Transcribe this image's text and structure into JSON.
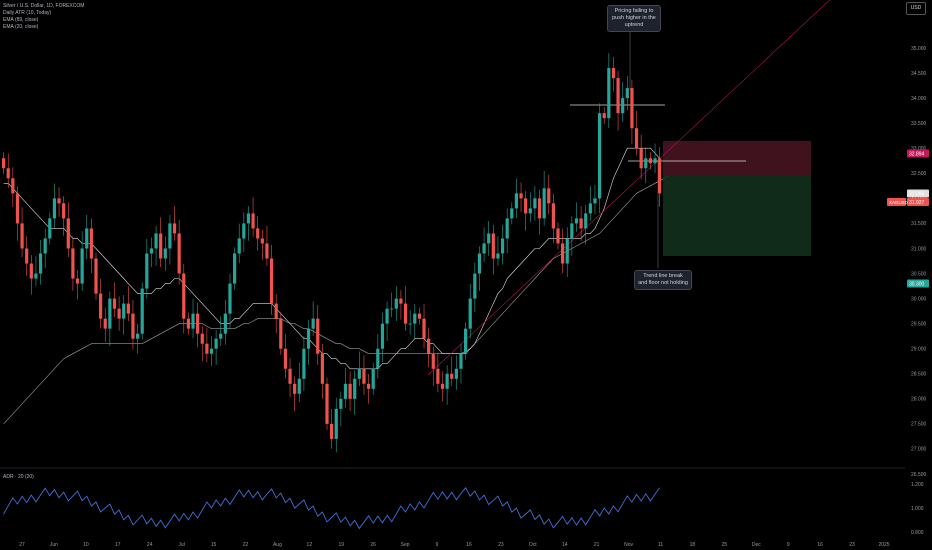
{
  "legend": {
    "symbol": "Silver / U.S. Dollar, 1D, FOREXCOM",
    "atr": "Daily ATR (10, Today)",
    "ema89": "EMA (89, close)",
    "ema20": "EMA (20, close)"
  },
  "currency_button": "USD",
  "annotations": {
    "top": "Pricing failing to push higher in the uptrend",
    "bottom": "Trend line break and floor not holding"
  },
  "indicator_label": "ADR · 20 (20)",
  "price_tags": {
    "stop": "32.894",
    "current": "31.927",
    "entry": "32.096",
    "target": "30.300",
    "symbol_tag": "XAGUSD"
  },
  "chart_data": {
    "type": "candlestick",
    "title": "Silver / U.S. Dollar, 1D, FOREXCOM",
    "y_range": [
      26.5,
      36.0
    ],
    "y_ticks": [
      "35.000",
      "34.500",
      "34.000",
      "33.500",
      "33.000",
      "32.500",
      "32.000",
      "31.500",
      "31.000",
      "30.500",
      "30.000",
      "29.500",
      "29.000",
      "28.500",
      "28.000",
      "27.500",
      "27.000",
      "26.500"
    ],
    "x_ticks": [
      "27",
      "Jun",
      "10",
      "17",
      "24",
      "Jul",
      "15",
      "22",
      "Aug",
      "12",
      "19",
      "26",
      "Sep",
      "9",
      "16",
      "23",
      "Oct",
      "14",
      "21",
      "Nov",
      "11",
      "18",
      "25",
      "Dec",
      "9",
      "16",
      "23",
      "2025"
    ],
    "close": [
      32.6,
      32.4,
      32.1,
      31.5,
      31.0,
      30.7,
      30.4,
      30.5,
      30.9,
      31.2,
      31.6,
      32.0,
      31.9,
      31.6,
      31.0,
      30.4,
      30.3,
      31.0,
      31.4,
      30.8,
      30.1,
      29.6,
      29.4,
      30.0,
      29.8,
      29.6,
      29.9,
      29.7,
      29.2,
      29.3,
      30.2,
      30.9,
      31.0,
      31.3,
      30.8,
      31.0,
      31.5,
      31.3,
      30.5,
      29.6,
      29.4,
      29.7,
      29.3,
      29.1,
      28.9,
      29.0,
      29.2,
      29.3,
      29.7,
      30.3,
      30.9,
      31.2,
      31.5,
      31.7,
      31.4,
      31.2,
      31.1,
      30.8,
      29.9,
      29.6,
      29.0,
      28.6,
      28.3,
      28.1,
      28.4,
      29.0,
      29.4,
      29.6,
      28.9,
      28.3,
      27.5,
      27.2,
      27.8,
      28.0,
      28.3,
      28.0,
      28.4,
      28.6,
      28.3,
      28.2,
      28.6,
      29.0,
      29.5,
      29.8,
      29.8,
      30.0,
      29.9,
      29.5,
      29.5,
      29.7,
      29.6,
      29.2,
      28.9,
      28.6,
      28.3,
      28.2,
      28.5,
      28.4,
      28.6,
      28.9,
      29.4,
      30.0,
      30.5,
      30.9,
      31.1,
      31.3,
      30.8,
      30.9,
      31.2,
      31.6,
      31.8,
      32.1,
      32.0,
      31.7,
      31.8,
      32.0,
      31.6,
      32.2,
      31.9,
      31.4,
      31.1,
      30.7,
      31.2,
      31.5,
      31.6,
      31.4,
      31.7,
      31.9,
      32.0,
      33.7,
      33.6,
      34.6,
      34.4,
      33.7,
      34.0,
      34.2,
      33.4,
      33.0,
      32.6,
      32.8,
      32.7,
      32.8,
      32.1
    ],
    "ema20": [
      32.3,
      32.3,
      32.2,
      32.1,
      32.0,
      31.9,
      31.8,
      31.7,
      31.6,
      31.5,
      31.4,
      31.4,
      31.4,
      31.4,
      31.3,
      31.2,
      31.2,
      31.1,
      31.1,
      31.1,
      31.0,
      30.9,
      30.8,
      30.7,
      30.6,
      30.5,
      30.4,
      30.3,
      30.2,
      30.1,
      30.1,
      30.1,
      30.1,
      30.2,
      30.2,
      30.3,
      30.3,
      30.4,
      30.4,
      30.3,
      30.2,
      30.1,
      30.0,
      29.9,
      29.8,
      29.7,
      29.6,
      29.5,
      29.5,
      29.5,
      29.6,
      29.6,
      29.7,
      29.8,
      29.9,
      29.9,
      29.9,
      29.9,
      29.9,
      29.8,
      29.7,
      29.6,
      29.5,
      29.4,
      29.3,
      29.2,
      29.2,
      29.1,
      29.0,
      28.9,
      28.9,
      28.8,
      28.8,
      28.7,
      28.7,
      28.6,
      28.6,
      28.6,
      28.6,
      28.6,
      28.6,
      28.6,
      28.7,
      28.7,
      28.8,
      28.9,
      29.0,
      29.0,
      29.1,
      29.2,
      29.2,
      29.2,
      29.1,
      29.1,
      29.0,
      28.9,
      28.9,
      28.9,
      28.9,
      28.9,
      28.9,
      29.0,
      29.1,
      29.3,
      29.5,
      29.7,
      29.9,
      30.1,
      30.2,
      30.4,
      30.5,
      30.6,
      30.7,
      30.8,
      30.9,
      31.0,
      31.0,
      31.1,
      31.2,
      31.2,
      31.2,
      31.2,
      31.2,
      31.2,
      31.2,
      31.2,
      31.3,
      31.3,
      31.4,
      31.6,
      31.8,
      32.1,
      32.4,
      32.6,
      32.8,
      33.0,
      33.0,
      33.0,
      33.0,
      33.0,
      33.0,
      32.9,
      32.8
    ],
    "ema89": [
      27.5,
      27.6,
      27.7,
      27.8,
      27.9,
      28.0,
      28.1,
      28.2,
      28.3,
      28.4,
      28.5,
      28.6,
      28.7,
      28.8,
      28.85,
      28.9,
      28.95,
      29.0,
      29.05,
      29.1,
      29.1,
      29.1,
      29.1,
      29.1,
      29.1,
      29.1,
      29.1,
      29.1,
      29.1,
      29.1,
      29.1,
      29.15,
      29.2,
      29.25,
      29.3,
      29.35,
      29.4,
      29.45,
      29.5,
      29.5,
      29.5,
      29.5,
      29.5,
      29.5,
      29.45,
      29.4,
      29.4,
      29.4,
      29.4,
      29.4,
      29.4,
      29.45,
      29.5,
      29.5,
      29.55,
      29.6,
      29.6,
      29.6,
      29.6,
      29.6,
      29.6,
      29.55,
      29.5,
      29.5,
      29.45,
      29.4,
      29.4,
      29.35,
      29.3,
      29.25,
      29.2,
      29.15,
      29.1,
      29.1,
      29.05,
      29.0,
      29.0,
      29.0,
      28.95,
      28.9,
      28.9,
      28.9,
      28.9,
      28.9,
      28.9,
      28.9,
      28.9,
      28.9,
      28.9,
      28.9,
      28.9,
      28.9,
      28.9,
      28.9,
      28.9,
      28.9,
      28.9,
      28.9,
      28.9,
      28.9,
      28.95,
      29.0,
      29.1,
      29.2,
      29.3,
      29.4,
      29.5,
      29.6,
      29.7,
      29.8,
      29.9,
      30.0,
      30.1,
      30.2,
      30.3,
      30.4,
      30.5,
      30.6,
      30.7,
      30.8,
      30.85,
      30.9,
      30.95,
      31.0,
      31.05,
      31.1,
      31.15,
      31.2,
      31.25,
      31.3,
      31.4,
      31.5,
      31.6,
      31.7,
      31.8,
      31.9,
      32.0,
      32.1,
      32.15,
      32.2,
      32.25,
      32.3,
      32.35,
      32.4,
      32.45
    ],
    "position": {
      "stop": 32.894,
      "entry": 32.096,
      "target": 30.3
    }
  }
}
